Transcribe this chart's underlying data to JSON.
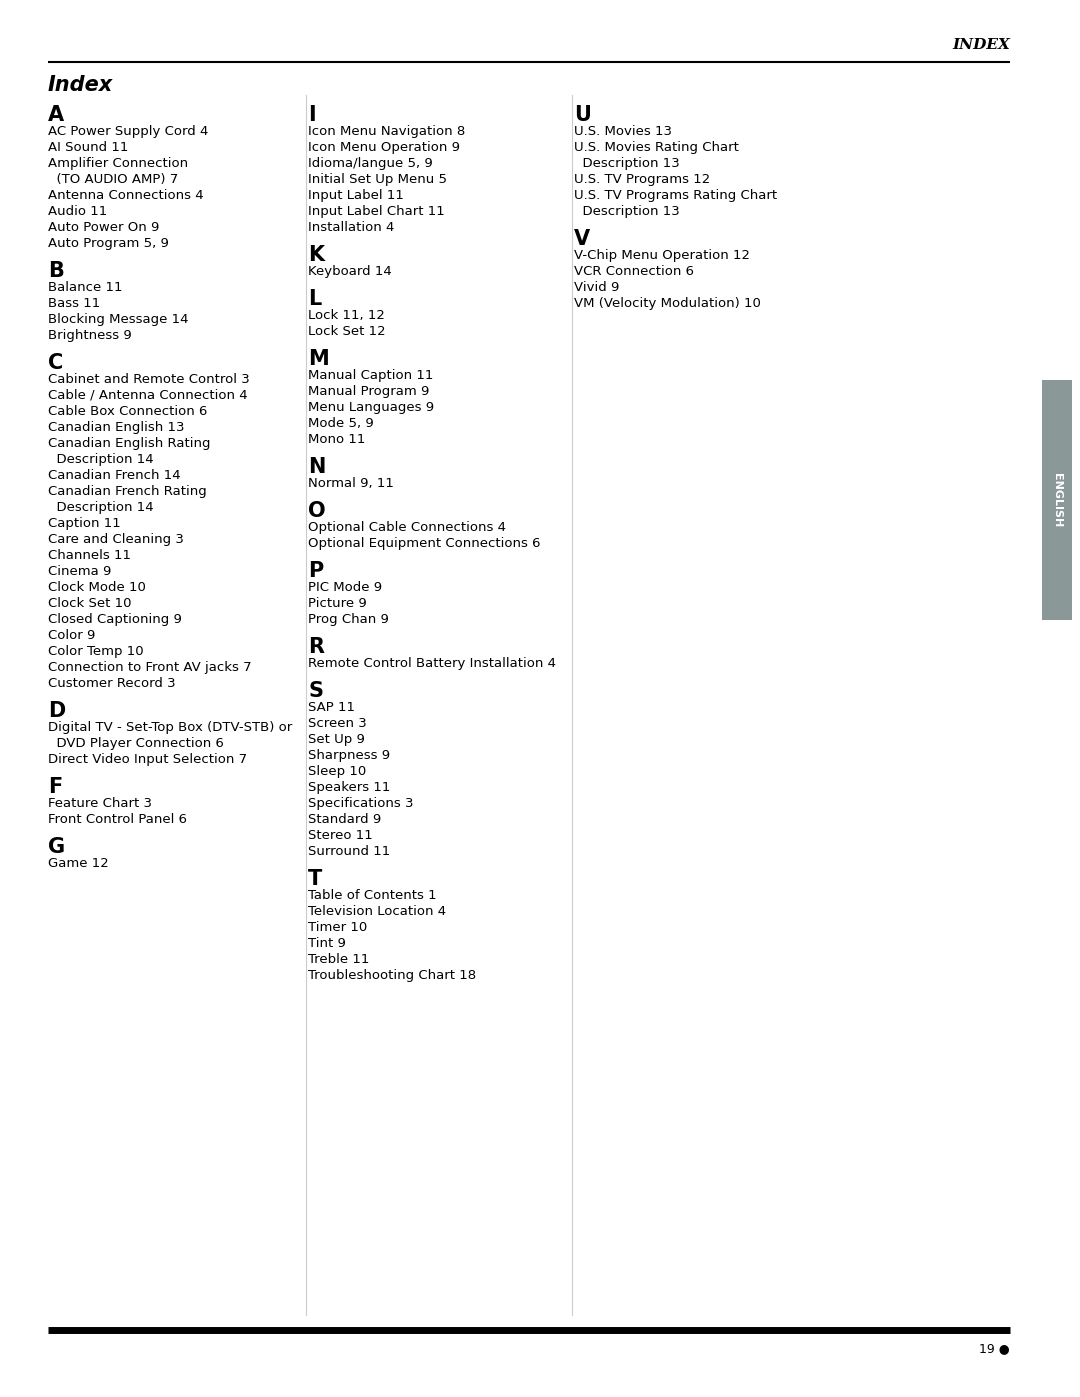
{
  "page_title_header": "INDEX",
  "page_title": "Index",
  "page_number": "19 ●",
  "english_tab": "ENGLISH",
  "col1_sections": [
    {
      "letter": "A",
      "items": [
        "AC Power Supply Cord 4",
        "AI Sound 11",
        "Amplifier Connection",
        "  (TO AUDIO AMP) 7",
        "Antenna Connections 4",
        "Audio 11",
        "Auto Power On 9",
        "Auto Program 5, 9"
      ]
    },
    {
      "letter": "B",
      "items": [
        "Balance 11",
        "Bass 11",
        "Blocking Message 14",
        "Brightness 9"
      ]
    },
    {
      "letter": "C",
      "items": [
        "Cabinet and Remote Control 3",
        "Cable / Antenna Connection 4",
        "Cable Box Connection 6",
        "Canadian English 13",
        "Canadian English Rating",
        "  Description 14",
        "Canadian French 14",
        "Canadian French Rating",
        "  Description 14",
        "Caption 11",
        "Care and Cleaning 3",
        "Channels 11",
        "Cinema 9",
        "Clock Mode 10",
        "Clock Set 10",
        "Closed Captioning 9",
        "Color 9",
        "Color Temp 10",
        "Connection to Front AV jacks 7",
        "Customer Record 3"
      ]
    },
    {
      "letter": "D",
      "items": [
        "Digital TV - Set-Top Box (DTV-STB) or",
        "  DVD Player Connection 6",
        "Direct Video Input Selection 7"
      ]
    },
    {
      "letter": "F",
      "items": [
        "Feature Chart 3",
        "Front Control Panel 6"
      ]
    },
    {
      "letter": "G",
      "items": [
        "Game 12"
      ]
    }
  ],
  "col2_sections": [
    {
      "letter": "I",
      "items": [
        "Icon Menu Navigation 8",
        "Icon Menu Operation 9",
        "Idioma/langue 5, 9",
        "Initial Set Up Menu 5",
        "Input Label 11",
        "Input Label Chart 11",
        "Installation 4"
      ]
    },
    {
      "letter": "K",
      "items": [
        "Keyboard 14"
      ]
    },
    {
      "letter": "L",
      "items": [
        "Lock 11, 12",
        "Lock Set 12"
      ]
    },
    {
      "letter": "M",
      "items": [
        "Manual Caption 11",
        "Manual Program 9",
        "Menu Languages 9",
        "Mode 5, 9",
        "Mono 11"
      ]
    },
    {
      "letter": "N",
      "items": [
        "Normal 9, 11"
      ]
    },
    {
      "letter": "O",
      "items": [
        "Optional Cable Connections 4",
        "Optional Equipment Connections 6"
      ]
    },
    {
      "letter": "P",
      "items": [
        "PIC Mode 9",
        "Picture 9",
        "Prog Chan 9"
      ]
    },
    {
      "letter": "R",
      "items": [
        "Remote Control Battery Installation 4"
      ]
    },
    {
      "letter": "S",
      "items": [
        "SAP 11",
        "Screen 3",
        "Set Up 9",
        "Sharpness 9",
        "Sleep 10",
        "Speakers 11",
        "Specifications 3",
        "Standard 9",
        "Stereo 11",
        "Surround 11"
      ]
    },
    {
      "letter": "T",
      "items": [
        "Table of Contents 1",
        "Television Location 4",
        "Timer 10",
        "Tint 9",
        "Treble 11",
        "Troubleshooting Chart 18"
      ]
    }
  ],
  "col3_sections": [
    {
      "letter": "U",
      "items": [
        "U.S. Movies 13",
        "U.S. Movies Rating Chart",
        "  Description 13",
        "U.S. TV Programs 12",
        "U.S. TV Programs Rating Chart",
        "  Description 13"
      ]
    },
    {
      "letter": "V",
      "items": [
        "V-Chip Menu Operation 12",
        "VCR Connection 6",
        "Vivid 9",
        "VM (Velocity Modulation) 10"
      ]
    }
  ],
  "bg_color": "#ffffff",
  "text_color": "#000000",
  "tab_bg_color": "#8a9898"
}
